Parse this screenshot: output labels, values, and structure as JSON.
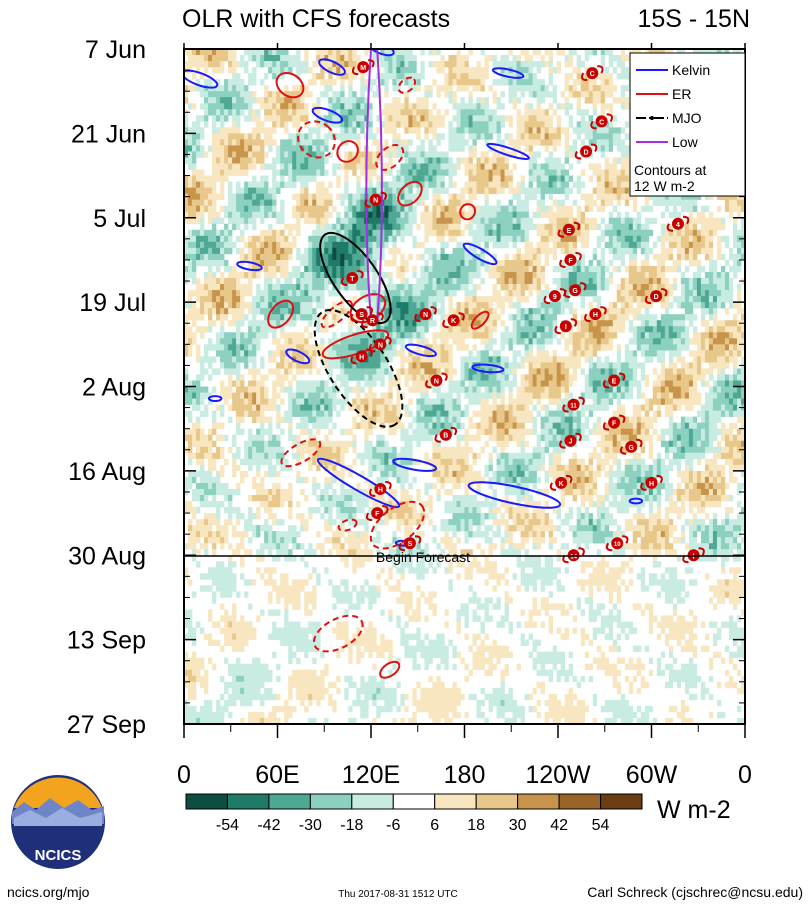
{
  "chart_data": {
    "type": "heatmap",
    "title": "OLR with CFS forecasts",
    "region": "15S - 15N",
    "x_tick_labels": [
      "0",
      "60E",
      "120E",
      "180",
      "120W",
      "60W",
      "0"
    ],
    "x_tick_lon": [
      0,
      60,
      120,
      180,
      240,
      300,
      360
    ],
    "y_tick_labels": [
      "7 Jun",
      "21 Jun",
      "5 Jul",
      "19 Jul",
      "2 Aug",
      "16 Aug",
      "30 Aug",
      "13 Sep",
      "27 Sep"
    ],
    "y_tick_day": [
      0,
      14,
      28,
      42,
      56,
      70,
      84,
      98,
      112
    ],
    "forecast_start_day": 84,
    "forecast_label": "Begin Forecast",
    "colorbar": {
      "unit": "W m-2",
      "tick_labels": [
        "-54",
        "-42",
        "-30",
        "-18",
        "-6",
        "6",
        "18",
        "30",
        "42",
        "54"
      ],
      "colors": [
        "#0d4d42",
        "#1f7a68",
        "#4fa894",
        "#8cd0c0",
        "#c8ebe2",
        "#ffffff",
        "#f7e6c0",
        "#e8c88a",
        "#c8934a",
        "#9a6428",
        "#6a3d12"
      ]
    },
    "legend": {
      "position": "top-right",
      "entries": [
        {
          "name": "Kelvin",
          "color": "#1a1aff",
          "style": "solid"
        },
        {
          "name": "ER",
          "color": "#e01010",
          "style": "solid"
        },
        {
          "name": "MJO",
          "color": "#000000",
          "style": "dash-dot"
        },
        {
          "name": "Low",
          "color": "#a030e0",
          "style": "solid"
        }
      ],
      "note_line1": "Contours at",
      "note_line2": "12 W m-2"
    },
    "mjo_contours": [
      {
        "lon_center": 110,
        "day_center": 38,
        "style": "solid"
      },
      {
        "lon_center": 112,
        "day_center": 53,
        "style": "dashed"
      }
    ],
    "storm_markers": [
      {
        "label": "M",
        "lon": 115,
        "day": 3
      },
      {
        "label": "C",
        "lon": 262,
        "day": 4
      },
      {
        "label": "C",
        "lon": 268,
        "day": 12
      },
      {
        "label": "D",
        "lon": 258,
        "day": 17
      },
      {
        "label": "N",
        "lon": 123,
        "day": 25
      },
      {
        "label": "4",
        "lon": 317,
        "day": 29
      },
      {
        "label": "E",
        "lon": 247,
        "day": 30
      },
      {
        "label": "F",
        "lon": 248,
        "day": 35
      },
      {
        "label": "T",
        "lon": 108,
        "day": 38
      },
      {
        "label": "9",
        "lon": 238,
        "day": 41
      },
      {
        "label": "G",
        "lon": 251,
        "day": 40
      },
      {
        "label": "D",
        "lon": 303,
        "day": 41
      },
      {
        "label": "N",
        "lon": 155,
        "day": 44
      },
      {
        "label": "K",
        "lon": 173,
        "day": 45
      },
      {
        "label": "H",
        "lon": 264,
        "day": 44
      },
      {
        "label": "S",
        "lon": 114,
        "day": 44
      },
      {
        "label": "R",
        "lon": 121,
        "day": 45
      },
      {
        "label": "I",
        "lon": 245,
        "day": 46
      },
      {
        "label": "N",
        "lon": 126,
        "day": 49
      },
      {
        "label": "H",
        "lon": 114,
        "day": 51
      },
      {
        "label": "N",
        "lon": 162,
        "day": 55
      },
      {
        "label": "E",
        "lon": 276,
        "day": 55
      },
      {
        "label": "11",
        "lon": 250,
        "day": 59
      },
      {
        "label": "F",
        "lon": 276,
        "day": 62
      },
      {
        "label": "B",
        "lon": 168,
        "day": 64
      },
      {
        "label": "J",
        "lon": 248,
        "day": 65
      },
      {
        "label": "G",
        "lon": 287,
        "day": 66
      },
      {
        "label": "H",
        "lon": 300,
        "day": 72
      },
      {
        "label": "K",
        "lon": 242,
        "day": 72
      },
      {
        "label": "H",
        "lon": 126,
        "day": 73
      },
      {
        "label": "F",
        "lon": 124,
        "day": 77
      },
      {
        "label": "S",
        "lon": 145,
        "day": 82
      },
      {
        "label": "10",
        "lon": 278,
        "day": 82
      },
      {
        "label": "14",
        "lon": 250,
        "day": 84
      },
      {
        "label": "I",
        "lon": 327,
        "day": 84
      }
    ]
  },
  "footer": {
    "website": "ncics.org/mjo",
    "timestamp": "Thu 2017-08-31 1512 UTC",
    "author": "Carl Schreck (cjschrec@ncsu.edu)",
    "logo_text": "NCICS"
  }
}
